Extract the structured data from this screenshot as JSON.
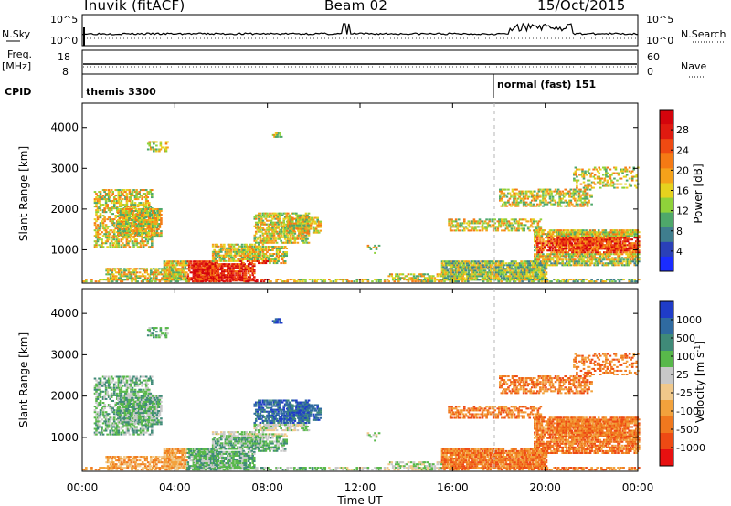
{
  "header": {
    "station": "Inuvik (fitACF)",
    "beam": "Beam 02",
    "date": "15/Oct/2015"
  },
  "panels": {
    "nsky": {
      "label": "N.Sky",
      "ticks_left": [
        "10^5",
        "10^0"
      ],
      "ticks_right": [
        "10^5",
        "10^0"
      ],
      "right_label": "N.Search"
    },
    "freq": {
      "label_line1": "Freq.",
      "label_line2": "[MHz]",
      "ticks_left": [
        "18",
        "8"
      ],
      "ticks_right": [
        "60",
        "0"
      ],
      "right_label": "Nave"
    },
    "cpid": {
      "label": "CPID",
      "segments": [
        "themis 3300",
        "normal (fast) 151"
      ]
    }
  },
  "chart_data": [
    {
      "type": "heatmap",
      "title": "",
      "xlabel": "Time UT",
      "ylabel": "Slant Range [km]",
      "x_ticks": [
        "00:00",
        "04:00",
        "08:00",
        "12:00",
        "16:00",
        "20:00",
        "00:00"
      ],
      "y_ticks": [
        1000,
        2000,
        3000,
        4000
      ],
      "ylim": [
        180,
        4600
      ],
      "colorbar": {
        "label": "Power [dB]",
        "ticks": [
          4,
          8,
          12,
          16,
          20,
          24,
          28
        ],
        "colors": [
          "#1a2cff",
          "#2a40b8",
          "#3f7e8e",
          "#4ea86a",
          "#8fd23a",
          "#e6d21e",
          "#f5a21a",
          "#f57a14",
          "#ef4a12",
          "#e01a10",
          "#d4040c"
        ]
      }
    },
    {
      "type": "heatmap",
      "title": "",
      "xlabel": "Time UT",
      "ylabel": "Slant Range [km]",
      "x_ticks": [
        "00:00",
        "04:00",
        "08:00",
        "12:00",
        "16:00",
        "20:00",
        "00:00"
      ],
      "y_ticks": [
        1000,
        2000,
        3000,
        4000
      ],
      "ylim": [
        180,
        4600
      ],
      "colorbar": {
        "label": "Velocity [m s^-1]",
        "ticks": [
          1000,
          500,
          100,
          25,
          -25,
          -100,
          -500,
          -1000
        ],
        "colors": [
          "#1f3cc8",
          "#2f6aa0",
          "#3f8a78",
          "#58b84a",
          "#c8c8c8",
          "#f0c88a",
          "#f2a23c",
          "#f0781e",
          "#ee4a14",
          "#e81010"
        ]
      }
    }
  ],
  "colors": {
    "cpid_divider": "#000000",
    "dashed_marker": "#b4b4b4"
  }
}
